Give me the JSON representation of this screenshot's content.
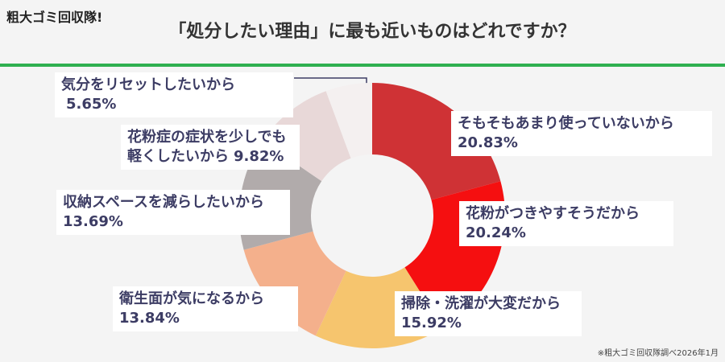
{
  "brand": "粗大ゴミ回収隊!",
  "footnote": "※粗大ゴミ回収隊調べ2026年1月",
  "chart_data": {
    "type": "donut",
    "title": "「処分したい理由」に最も近いものはどれですか？",
    "categories": [
      "そもそもあまり使っていないから",
      "花粉がつきやすそうだから",
      "掃除・洗濯が大変だから",
      "衛生面が気になるから",
      "収納スペースを減らしたいから",
      "花粉症の症状を少しでも軽くしたいから",
      "気分をリセットしたいから"
    ],
    "values": [
      20.83,
      20.24,
      15.92,
      13.84,
      13.69,
      9.82,
      5.65
    ],
    "value_labels": [
      "20.83%",
      "20.24%",
      "15.92%",
      "13.84%",
      "13.69%",
      "9.82%",
      "5.65%"
    ],
    "colors": [
      "#cf3235",
      "#f50f10",
      "#f6c56e",
      "#f4b08c",
      "#b1abab",
      "#e8d8d8",
      "#f4f0f0"
    ]
  }
}
